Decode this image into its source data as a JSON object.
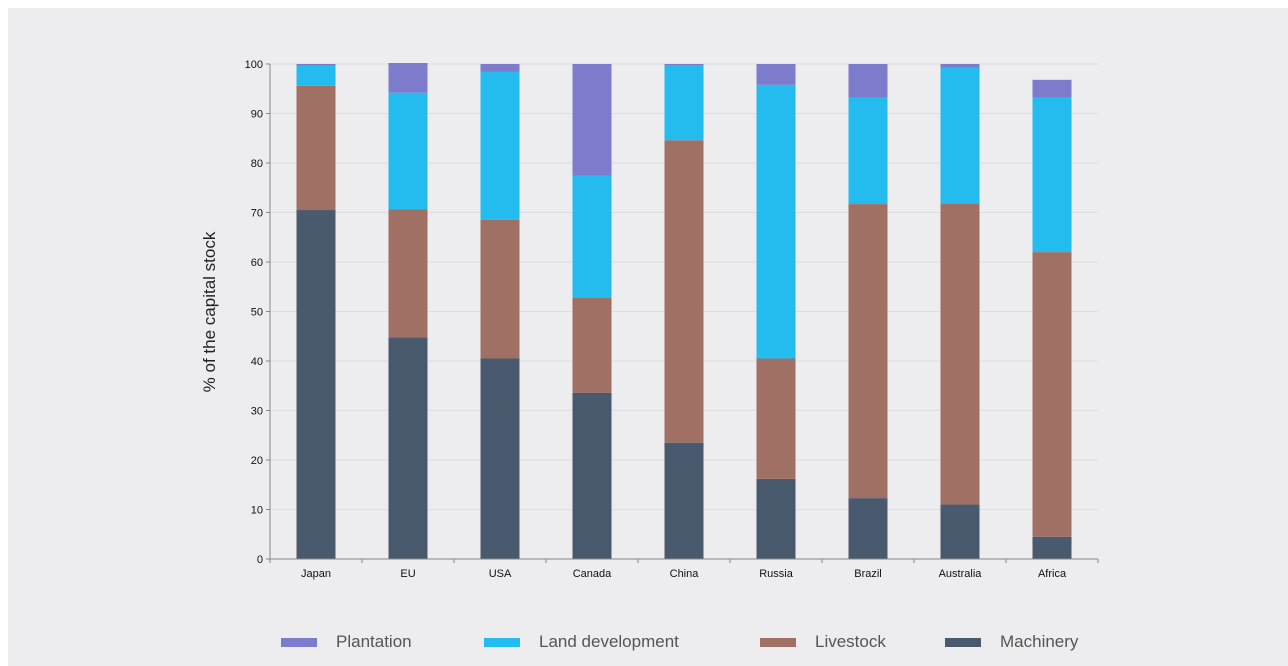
{
  "chart_data": {
    "type": "bar",
    "stacked": true,
    "title": "",
    "xlabel": "",
    "ylabel": "% of the capital stock",
    "ylim": [
      0,
      100
    ],
    "yticks": [
      0,
      10,
      20,
      30,
      40,
      50,
      60,
      70,
      80,
      90,
      100
    ],
    "grid": true,
    "legend_position": "bottom",
    "categories": [
      "Japan",
      "EU",
      "USA",
      "Canada",
      "China",
      "Russia",
      "Brazil",
      "Australia",
      "Africa"
    ],
    "series": [
      {
        "name": "Machinery",
        "color": "#4a5a6e",
        "values": [
          70.5,
          44.8,
          40.5,
          33.6,
          23.5,
          16.2,
          12.3,
          11.0,
          4.5
        ]
      },
      {
        "name": "Livestock",
        "color": "#a07064",
        "values": [
          25.1,
          25.8,
          28.0,
          19.2,
          61.1,
          24.3,
          59.4,
          60.8,
          57.5
        ]
      },
      {
        "name": "Land development",
        "color": "#24bcee",
        "values": [
          4.1,
          23.6,
          29.9,
          24.6,
          15.2,
          55.3,
          21.5,
          27.5,
          31.2
        ]
      },
      {
        "name": "Plantation",
        "color": "#7d7bcb",
        "values": [
          0.3,
          6.0,
          1.6,
          22.6,
          0.2,
          4.2,
          6.8,
          0.7,
          3.6
        ]
      }
    ]
  },
  "legend": {
    "items": [
      {
        "label": "Plantation",
        "color": "#7d7bcb"
      },
      {
        "label": "Land development",
        "color": "#24bcee"
      },
      {
        "label": "Livestock",
        "color": "#a07064"
      },
      {
        "label": "Machinery",
        "color": "#4a5a6e"
      }
    ]
  }
}
